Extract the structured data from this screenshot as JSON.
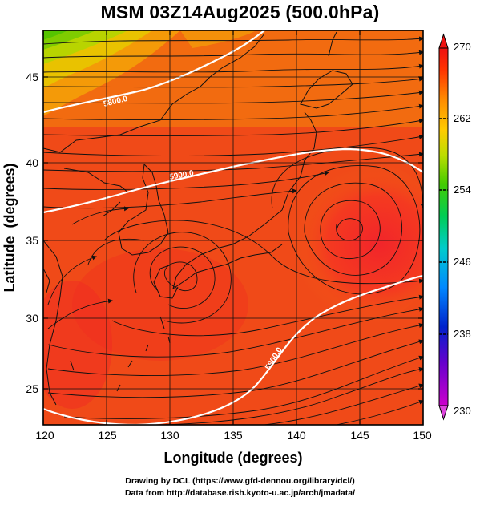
{
  "title": "MSM 03Z14Aug2025 (500.0hPa)",
  "axes": {
    "xlabel": "Longitude (degrees)",
    "ylabel": "Latitude  (degrees)",
    "x_ticks": [
      "120",
      "125",
      "130",
      "135",
      "140",
      "145",
      "150"
    ],
    "y_ticks": [
      "25",
      "30",
      "35",
      "40",
      "45"
    ],
    "x_range": [
      120,
      150
    ],
    "y_range": [
      22.4,
      47.6
    ]
  },
  "colorbar": {
    "tick_labels": [
      "270",
      "262",
      "254",
      "246",
      "238",
      "230"
    ],
    "range": [
      230,
      270
    ],
    "colors": [
      "#cc00cc",
      "#3300cc",
      "#0066ff",
      "#00ccff",
      "#00cc66",
      "#33cc00",
      "#ccdd00",
      "#ffcc00",
      "#ff8800",
      "#ff3300",
      "#ee1111"
    ]
  },
  "contours": [
    {
      "label": "5800.0"
    },
    {
      "label": "5900.0"
    },
    {
      "label": "5900.0"
    }
  ],
  "credits": {
    "line1": "Drawing by DCL (https://www.gfd-dennou.org/library/dcl/)",
    "line2": "Data from http://database.rish.kyoto-u.ac.jp/arch/jmadata/"
  }
}
